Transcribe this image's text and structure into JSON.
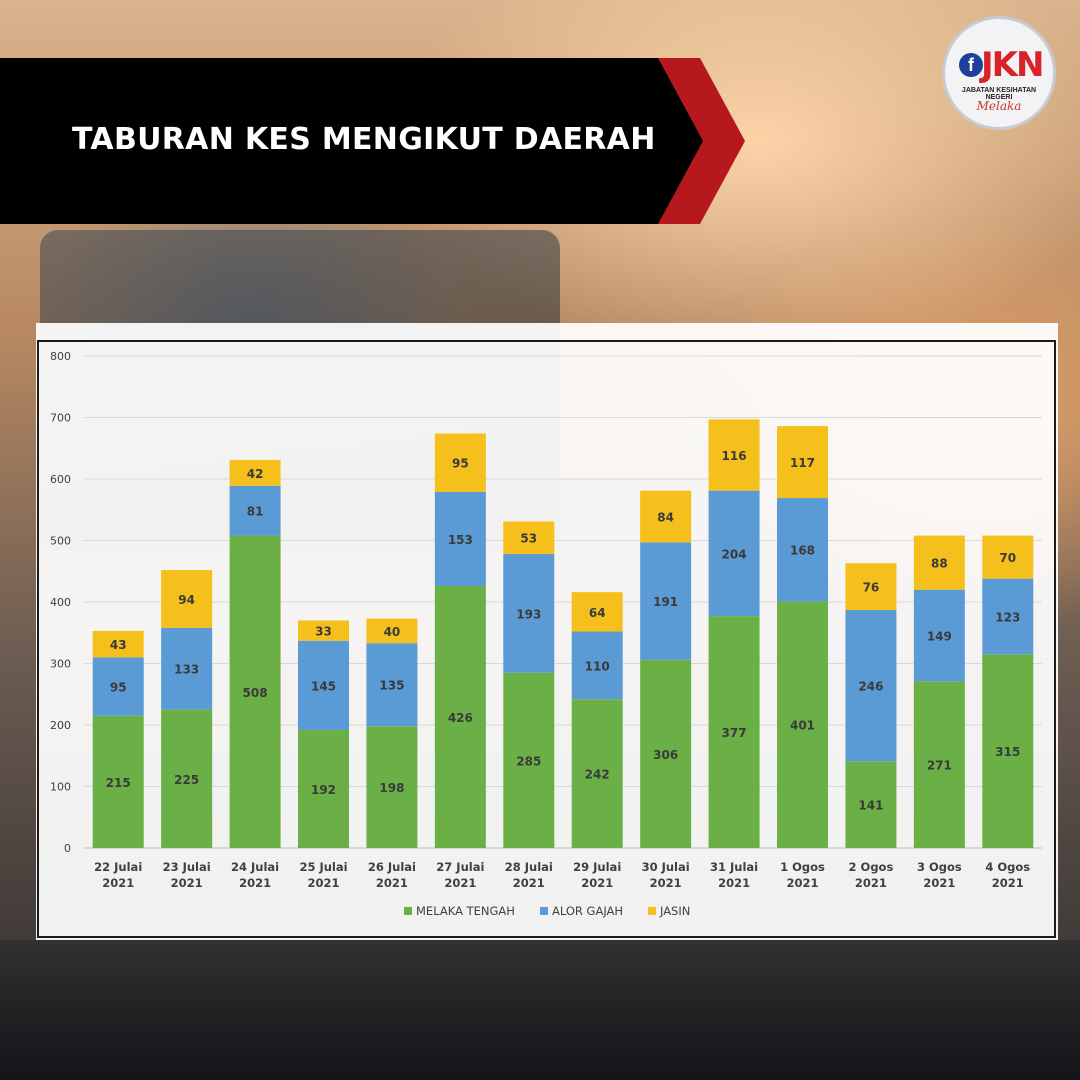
{
  "header": {
    "title": "TABURAN KES MENGIKUT DAERAH"
  },
  "logo": {
    "icon": "facebook-f-icon",
    "brand": "JKN",
    "subtitle": "JABATAN KESIHATAN NEGERI",
    "script": "Melaka"
  },
  "colors": {
    "banner_black": "#000000",
    "banner_red": "#b5191e",
    "series_melaka_tengah": "#6bb046",
    "series_alor_gajah": "#5b9bd5",
    "series_jasin": "#f5bf1c"
  },
  "chart_data": {
    "type": "bar",
    "stacked": true,
    "categories": [
      [
        "22 Julai",
        "2021"
      ],
      [
        "23 Julai",
        "2021"
      ],
      [
        "24 Julai",
        "2021"
      ],
      [
        "25 Julai",
        "2021"
      ],
      [
        "26 Julai",
        "2021"
      ],
      [
        "27 Julai",
        "2021"
      ],
      [
        "28 Julai",
        "2021"
      ],
      [
        "29 Julai",
        "2021"
      ],
      [
        "30 Julai",
        "2021"
      ],
      [
        "31 Julai",
        "2021"
      ],
      [
        "1 Ogos",
        "2021"
      ],
      [
        "2 Ogos",
        "2021"
      ],
      [
        "3 Ogos",
        "2021"
      ],
      [
        "4 Ogos",
        "2021"
      ]
    ],
    "series": [
      {
        "name": "MELAKA TENGAH",
        "color": "#6bb046",
        "values": [
          215,
          225,
          508,
          192,
          198,
          426,
          285,
          242,
          306,
          377,
          401,
          141,
          271,
          315
        ]
      },
      {
        "name": "ALOR GAJAH",
        "color": "#5b9bd5",
        "values": [
          95,
          133,
          81,
          145,
          135,
          153,
          193,
          110,
          191,
          204,
          168,
          246,
          149,
          123
        ]
      },
      {
        "name": "JASIN",
        "color": "#f5bf1c",
        "values": [
          43,
          94,
          42,
          33,
          40,
          95,
          53,
          64,
          84,
          116,
          117,
          76,
          88,
          70
        ]
      }
    ],
    "ylim": [
      0,
      800
    ],
    "yticks": [
      0,
      100,
      200,
      300,
      400,
      500,
      600,
      700,
      800
    ],
    "grid": true,
    "legend": "bottom",
    "title": "",
    "xlabel": "",
    "ylabel": ""
  }
}
